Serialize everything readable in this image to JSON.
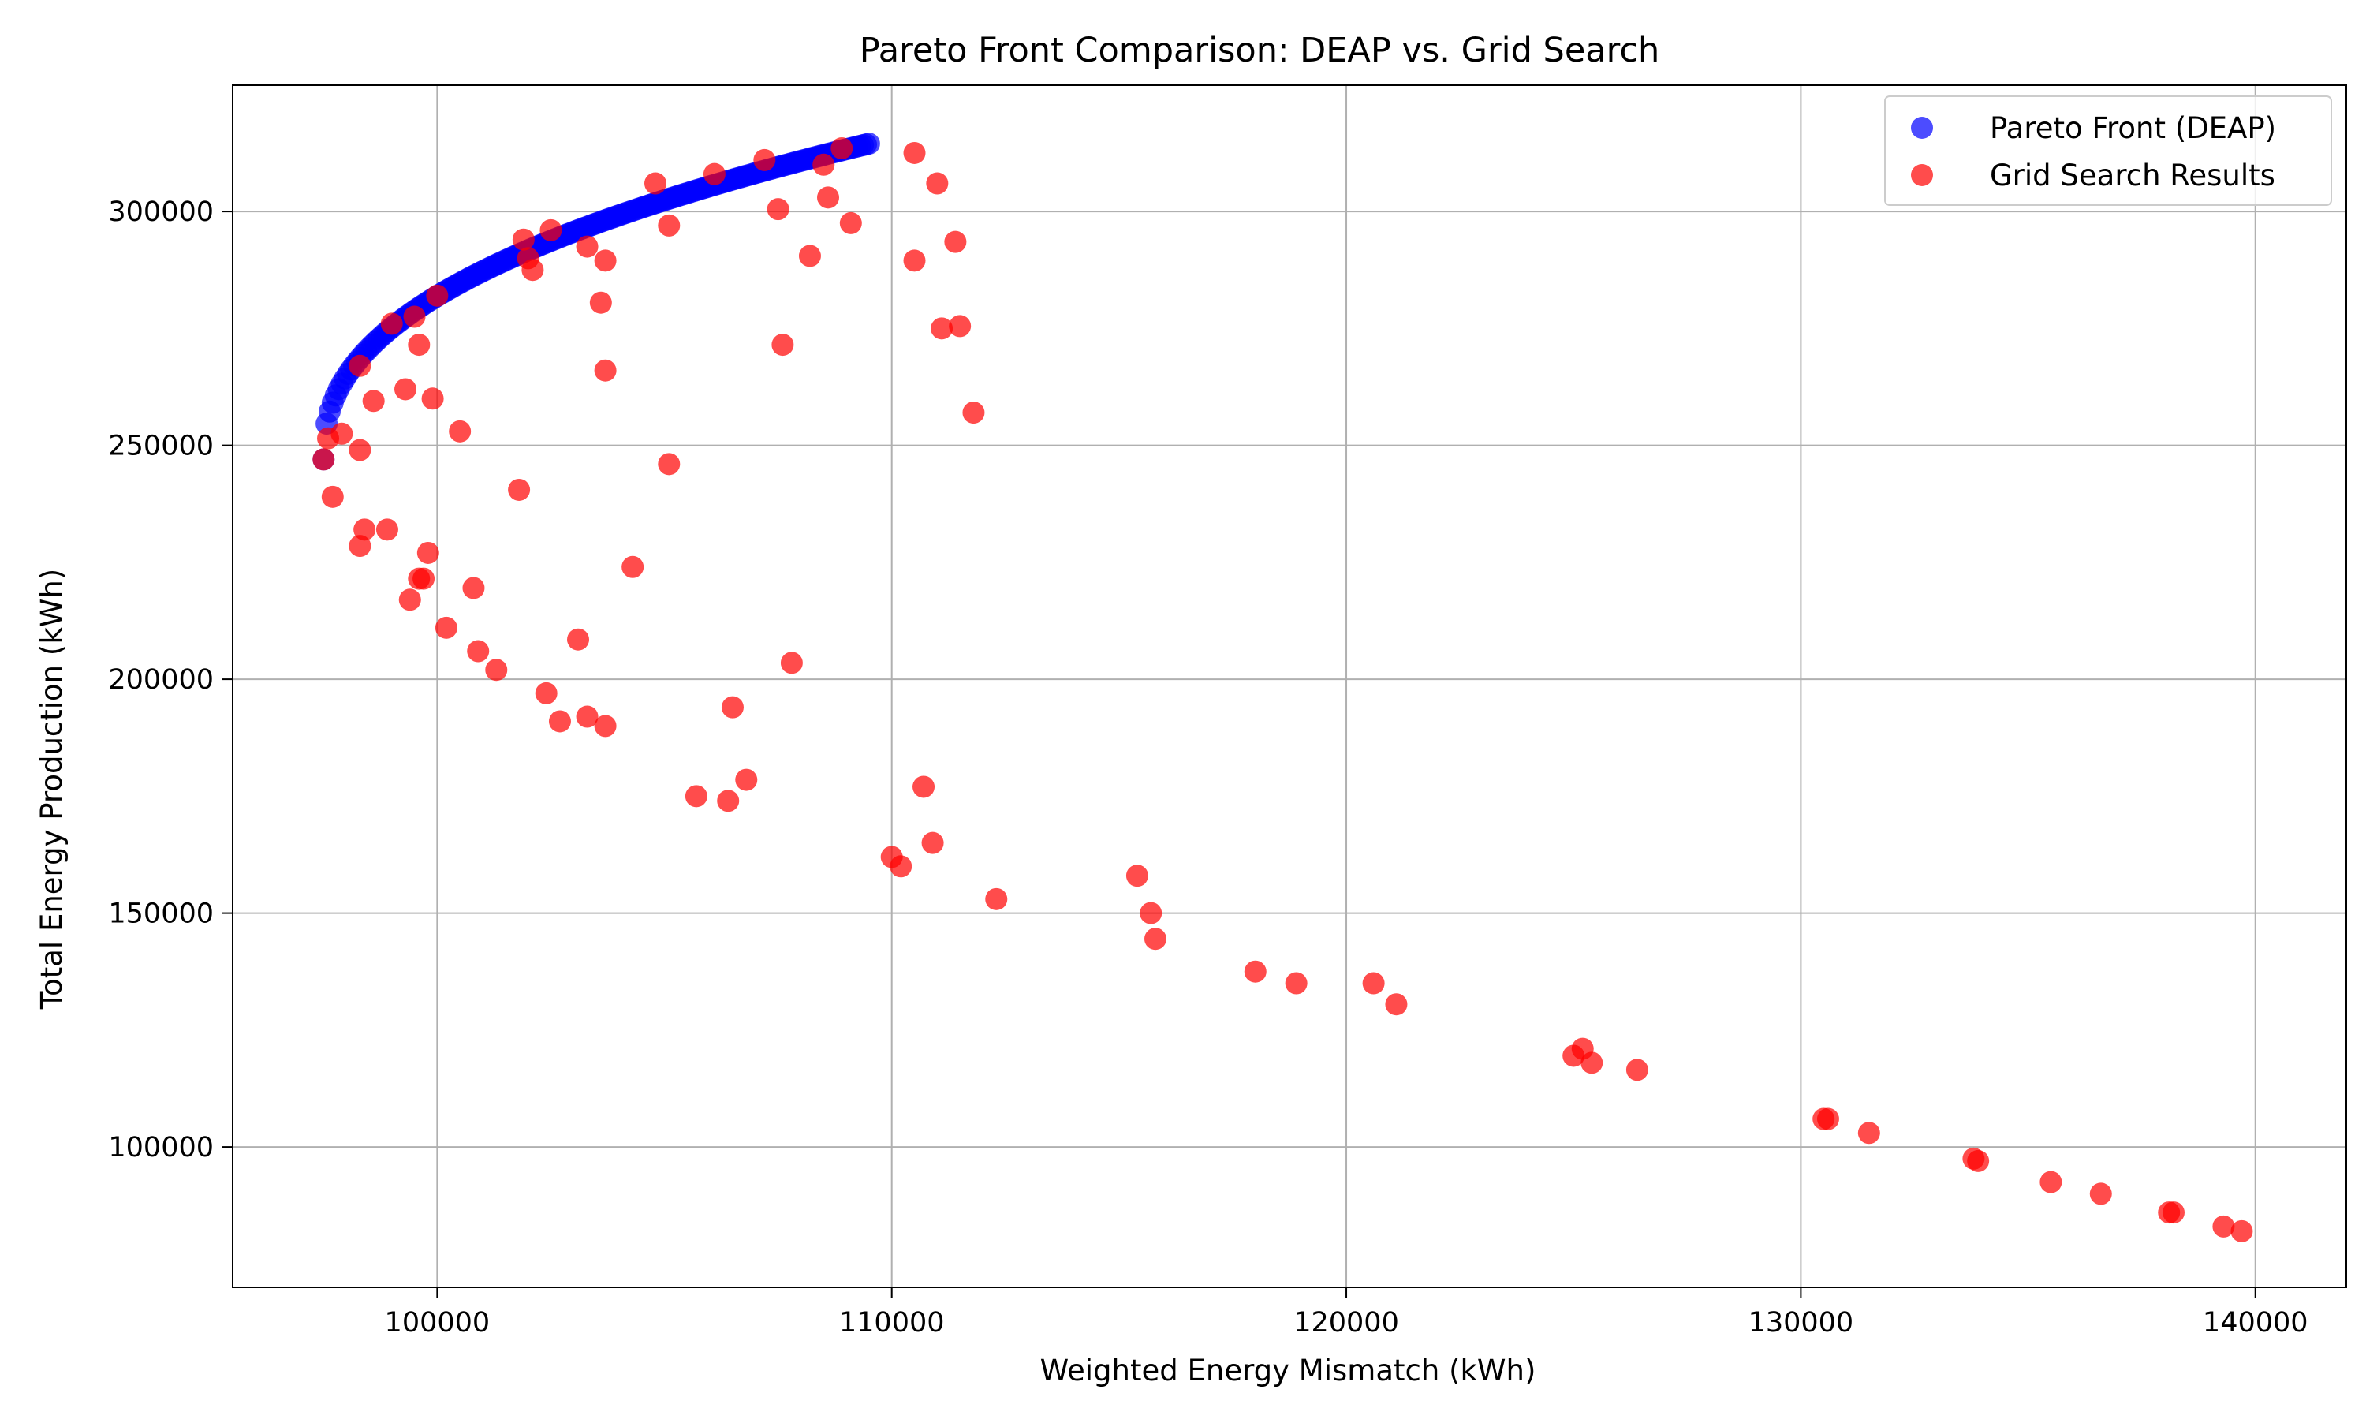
{
  "chart_data": {
    "type": "scatter",
    "title": "Pareto Front Comparison: DEAP vs. Grid Search",
    "xlabel": "Weighted Energy Mismatch (kWh)",
    "ylabel": "Total Energy Production (kWh)",
    "xlim": [
      95500,
      142000
    ],
    "ylim": [
      70000,
      327000
    ],
    "xticks": [
      100000,
      110000,
      120000,
      130000,
      140000
    ],
    "yticks": [
      100000,
      150000,
      200000,
      250000,
      300000
    ],
    "grid": true,
    "legend_position": "top-right",
    "series": [
      {
        "name": "Pareto Front (DEAP)",
        "color": "#0000ff",
        "alpha": 0.7,
        "pareto_front_parameters": {
          "x_min": 97500,
          "x_max": 109500,
          "y_min": 247000,
          "y_max": 314500,
          "num_points": 180
        }
      },
      {
        "name": "Grid Search Results",
        "color": "#ff0000",
        "alpha": 0.7,
        "points": [
          [
            97500,
            247000
          ],
          [
            97600,
            251500
          ],
          [
            97700,
            239000
          ],
          [
            97900,
            252500
          ],
          [
            98300,
            267000
          ],
          [
            98300,
            249000
          ],
          [
            98300,
            228500
          ],
          [
            98400,
            232000
          ],
          [
            98600,
            259500
          ],
          [
            98900,
            232000
          ],
          [
            99000,
            276000
          ],
          [
            99300,
            262000
          ],
          [
            99400,
            217000
          ],
          [
            99500,
            277500
          ],
          [
            99600,
            271500
          ],
          [
            99600,
            221500
          ],
          [
            99700,
            221500
          ],
          [
            99800,
            227000
          ],
          [
            99900,
            260000
          ],
          [
            100000,
            282000
          ],
          [
            100200,
            211000
          ],
          [
            100500,
            253000
          ],
          [
            100800,
            219500
          ],
          [
            100900,
            206000
          ],
          [
            101300,
            202000
          ],
          [
            101800,
            240500
          ],
          [
            101900,
            294000
          ],
          [
            102000,
            290000
          ],
          [
            102100,
            287500
          ],
          [
            102400,
            197000
          ],
          [
            102500,
            296000
          ],
          [
            102700,
            191000
          ],
          [
            103100,
            208500
          ],
          [
            103300,
            192000
          ],
          [
            103300,
            292500
          ],
          [
            103600,
            280500
          ],
          [
            103700,
            266000
          ],
          [
            103700,
            289500
          ],
          [
            103700,
            190000
          ],
          [
            104300,
            224000
          ],
          [
            104800,
            306000
          ],
          [
            105100,
            297000
          ],
          [
            105100,
            246000
          ],
          [
            105700,
            175000
          ],
          [
            106100,
            308000
          ],
          [
            106400,
            174000
          ],
          [
            106500,
            194000
          ],
          [
            106800,
            178500
          ],
          [
            107200,
            311000
          ],
          [
            107500,
            300500
          ],
          [
            107600,
            271500
          ],
          [
            107800,
            203500
          ],
          [
            108200,
            290500
          ],
          [
            108500,
            310000
          ],
          [
            108600,
            303000
          ],
          [
            108900,
            313500
          ],
          [
            109100,
            297500
          ],
          [
            110000,
            162000
          ],
          [
            110200,
            160000
          ],
          [
            110500,
            312500
          ],
          [
            110500,
            289500
          ],
          [
            110700,
            177000
          ],
          [
            110900,
            165000
          ],
          [
            111000,
            306000
          ],
          [
            111100,
            275000
          ],
          [
            111400,
            293500
          ],
          [
            111500,
            275500
          ],
          [
            111800,
            257000
          ],
          [
            112300,
            153000
          ],
          [
            115400,
            158000
          ],
          [
            115700,
            150000
          ],
          [
            115800,
            144500
          ],
          [
            118000,
            137500
          ],
          [
            118900,
            135000
          ],
          [
            120600,
            135000
          ],
          [
            121100,
            130500
          ],
          [
            125000,
            119500
          ],
          [
            125200,
            121000
          ],
          [
            125400,
            118000
          ],
          [
            126400,
            116500
          ],
          [
            130500,
            106000
          ],
          [
            130600,
            106000
          ],
          [
            131500,
            103000
          ],
          [
            133800,
            97500
          ],
          [
            133900,
            97000
          ],
          [
            135500,
            92500
          ],
          [
            136600,
            90000
          ],
          [
            138100,
            86000
          ],
          [
            138200,
            86000
          ],
          [
            139300,
            83000
          ],
          [
            139700,
            82000
          ]
        ]
      }
    ]
  }
}
